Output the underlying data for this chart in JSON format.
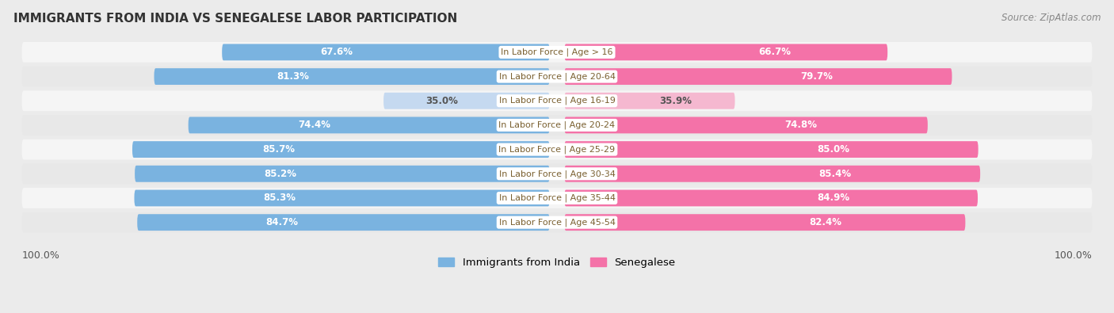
{
  "title": "IMMIGRANTS FROM INDIA VS SENEGALESE LABOR PARTICIPATION",
  "source": "Source: ZipAtlas.com",
  "categories": [
    "In Labor Force | Age > 16",
    "In Labor Force | Age 20-64",
    "In Labor Force | Age 16-19",
    "In Labor Force | Age 20-24",
    "In Labor Force | Age 25-29",
    "In Labor Force | Age 30-34",
    "In Labor Force | Age 35-44",
    "In Labor Force | Age 45-54"
  ],
  "india_values": [
    67.6,
    81.3,
    35.0,
    74.4,
    85.7,
    85.2,
    85.3,
    84.7
  ],
  "senegal_values": [
    66.7,
    79.7,
    35.9,
    74.8,
    85.0,
    85.4,
    84.9,
    82.4
  ],
  "india_color": "#7ab3e0",
  "india_color_light": "#c5d9f0",
  "senegal_color": "#f472a8",
  "senegal_color_light": "#f5b8d0",
  "bar_height": 0.68,
  "background_color": "#ebebeb",
  "row_bg_even": "#f5f5f5",
  "row_bg_odd": "#e8e8e8",
  "label_text_color": "#7a6030",
  "value_text_color_dark": "#ffffff",
  "value_text_color_light": "#555555",
  "legend_india": "Immigrants from India",
  "legend_senegal": "Senegalese",
  "axis_label_left": "100.0%",
  "axis_label_right": "100.0%",
  "max_val": 100.0,
  "low_threshold": 50
}
